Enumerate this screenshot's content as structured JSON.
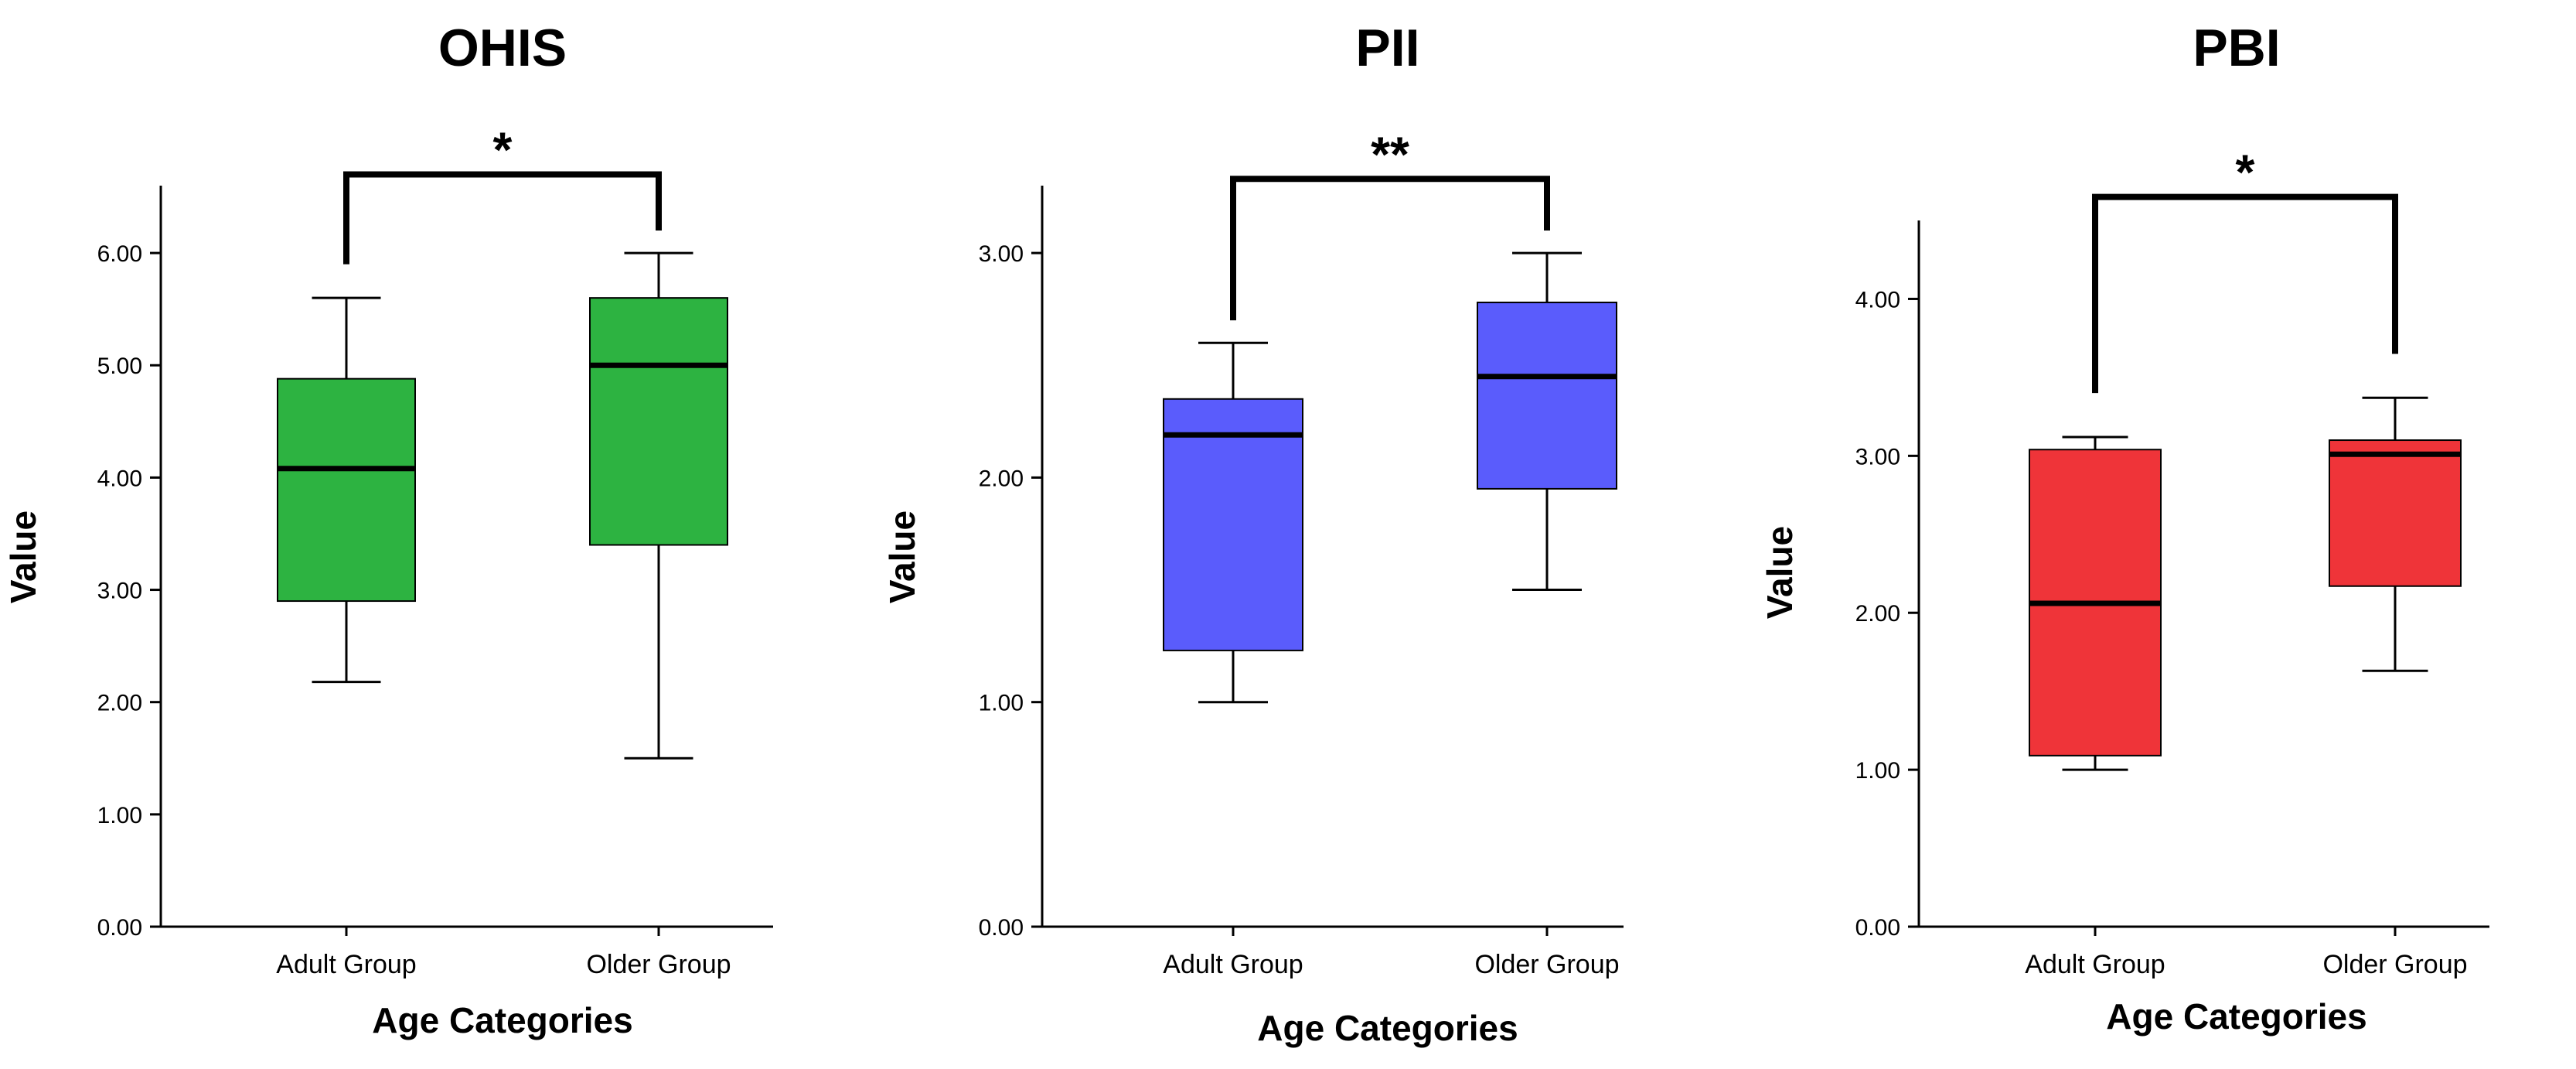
{
  "chart_data": [
    {
      "type": "boxplot",
      "title": "OHIS",
      "xlabel": "Age Categories",
      "ylabel": "Value",
      "categories": [
        "Adult Group",
        "Older Group"
      ],
      "ylim": [
        0,
        6.6
      ],
      "yticks": [
        0,
        1,
        2,
        3,
        4,
        5,
        6
      ],
      "ytick_labels": [
        "0.00",
        "1.00",
        "2.00",
        "3.00",
        "4.00",
        "5.00",
        "6.00"
      ],
      "color": "#2db341",
      "boxes": [
        {
          "category": "Adult Group",
          "min": 2.18,
          "q1": 2.9,
          "median": 4.08,
          "q3": 4.88,
          "max": 5.6
        },
        {
          "category": "Older Group",
          "min": 1.5,
          "q1": 3.4,
          "median": 5.0,
          "q3": 5.6,
          "max": 6.0
        }
      ],
      "significance": {
        "label": "*",
        "level_value": 6.7,
        "left_value": 5.9,
        "right_value": 6.2
      }
    },
    {
      "type": "boxplot",
      "title": "PII",
      "xlabel": "Age Categories",
      "ylabel": "Value",
      "categories": [
        "Adult Group",
        "Older Group"
      ],
      "ylim": [
        0,
        3.3
      ],
      "yticks": [
        0,
        1,
        2,
        3
      ],
      "ytick_labels": [
        "0.00",
        "1.00",
        "2.00",
        "3.00"
      ],
      "color": "#5a5cfc",
      "boxes": [
        {
          "category": "Adult Group",
          "min": 1.0,
          "q1": 1.23,
          "median": 2.19,
          "q3": 2.35,
          "max": 2.6
        },
        {
          "category": "Older Group",
          "min": 1.5,
          "q1": 1.95,
          "median": 2.45,
          "q3": 2.78,
          "max": 3.0
        }
      ],
      "significance": {
        "label": "**",
        "level_value": 3.33,
        "left_value": 2.7,
        "right_value": 3.1
      }
    },
    {
      "type": "boxplot",
      "title": "PBI",
      "xlabel": "Age Categories",
      "ylabel": "Value",
      "categories": [
        "Adult Group",
        "Older Group"
      ],
      "ylim": [
        0,
        4.5
      ],
      "yticks": [
        0,
        1,
        2,
        3,
        4
      ],
      "ytick_labels": [
        "0.00",
        "1.00",
        "2.00",
        "3.00",
        "4.00"
      ],
      "color": "#ef3439",
      "boxes": [
        {
          "category": "Adult Group",
          "min": 1.0,
          "q1": 1.09,
          "median": 2.06,
          "q3": 3.04,
          "max": 3.12
        },
        {
          "category": "Older Group",
          "min": 1.63,
          "q1": 2.17,
          "median": 3.01,
          "q3": 3.1,
          "max": 3.37
        }
      ],
      "significance": {
        "label": "*",
        "level_value": 4.65,
        "left_value": 3.4,
        "right_value": 3.65
      }
    }
  ]
}
